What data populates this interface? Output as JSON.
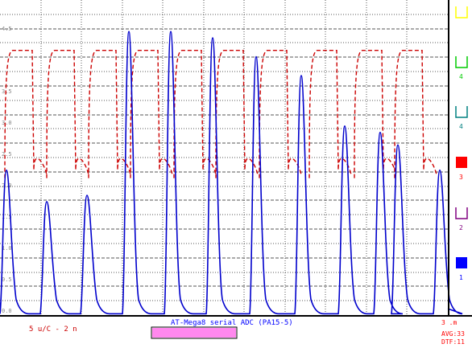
{
  "window": {
    "title": "AT-Mega8 serial ADC (PA15-5)",
    "scale_label": "5 u/C - 2 n",
    "right_top_label": "3 .m",
    "avg_label": "AVG:33",
    "dtf_label": "DTF:11"
  },
  "y_tick_labels": [
    "4.5",
    "3.5",
    "3.0",
    "2.5",
    "2.0",
    "1.5",
    "1.0",
    "0.5",
    "0.0"
  ],
  "channels": [
    {
      "id": "5",
      "label": "",
      "color": "#ffff00",
      "filled": false
    },
    {
      "id": "4",
      "label": "4",
      "color": "#00cc00",
      "filled": false
    },
    {
      "id": "3b",
      "label": "4",
      "color": "#008080",
      "filled": false
    },
    {
      "id": "3",
      "label": "3",
      "color": "#ff0000",
      "filled": true
    },
    {
      "id": "2",
      "label": "2",
      "color": "#800080",
      "filled": false
    },
    {
      "id": "1",
      "label": "1",
      "color": "#0000ff",
      "filled": true
    }
  ],
  "colors": {
    "red_trace": "#cc0000",
    "blue_trace": "#0000cc",
    "grid": "#555555",
    "border": "#000000",
    "progress": "#ff88ee"
  },
  "status": {
    "progress_fraction": 0.26
  },
  "chart_data": {
    "type": "line",
    "title": "AT-Mega8 serial ADC (PA15-5)",
    "xlabel": "",
    "ylabel": "",
    "ylim": [
      0,
      5
    ],
    "grid": true,
    "series": [
      {
        "name": "3",
        "style": "dashed",
        "x": [
          0,
          3,
          6,
          9,
          12
        ],
        "description_points": "square pulses high approx 4.2, low approx 2.3",
        "pulse_high": 4.2,
        "pulse_low": 2.3,
        "periods": 10
      },
      {
        "name": "1",
        "style": "solid",
        "pulse_peaks": [
          2.3,
          1.8,
          1.9,
          4.5,
          4.5,
          4.4,
          4.1,
          3.8,
          3.0,
          2.9,
          2.7,
          2.3
        ],
        "pulse_low": 0.0
      }
    ]
  }
}
